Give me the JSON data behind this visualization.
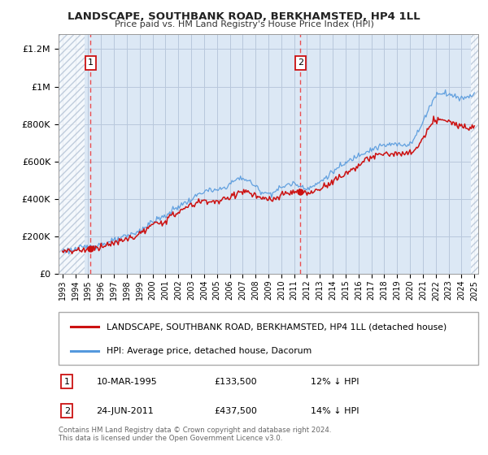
{
  "title": "LANDSCAPE, SOUTHBANK ROAD, BERKHAMSTED, HP4 1LL",
  "subtitle": "Price paid vs. HM Land Registry's House Price Index (HPI)",
  "ylabel_ticks": [
    "£0",
    "£200K",
    "£400K",
    "£600K",
    "£800K",
    "£1M",
    "£1.2M"
  ],
  "ytick_values": [
    0,
    200000,
    400000,
    600000,
    800000,
    1000000,
    1200000
  ],
  "ylim": [
    0,
    1280000
  ],
  "xlim_start": 1992.7,
  "xlim_end": 2025.3,
  "background_color": "#ffffff",
  "plot_bg_color": "#dce8f5",
  "hatch_color": "#aabbd0",
  "grid_color": "#b8c8dc",
  "sale1": {
    "year": 1995.19,
    "price": 133500,
    "label": "1"
  },
  "sale2": {
    "year": 2011.48,
    "price": 437500,
    "label": "2"
  },
  "legend_entries": [
    "LANDSCAPE, SOUTHBANK ROAD, BERKHAMSTED, HP4 1LL (detached house)",
    "HPI: Average price, detached house, Dacorum"
  ],
  "legend_line_colors": [
    "#cc1111",
    "#5599dd"
  ],
  "annotation_box1": {
    "label": "1",
    "date": "10-MAR-1995",
    "price": "£133,500",
    "hpi": "12% ↓ HPI"
  },
  "annotation_box2": {
    "label": "2",
    "date": "24-JUN-2011",
    "price": "£437,500",
    "hpi": "14% ↓ HPI"
  },
  "footer": "Contains HM Land Registry data © Crown copyright and database right 2024.\nThis data is licensed under the Open Government Licence v3.0.",
  "red_line_color": "#cc1111",
  "blue_line_color": "#5599dd",
  "dot_color": "#cc1111",
  "dashed_line_color": "#ee3333"
}
